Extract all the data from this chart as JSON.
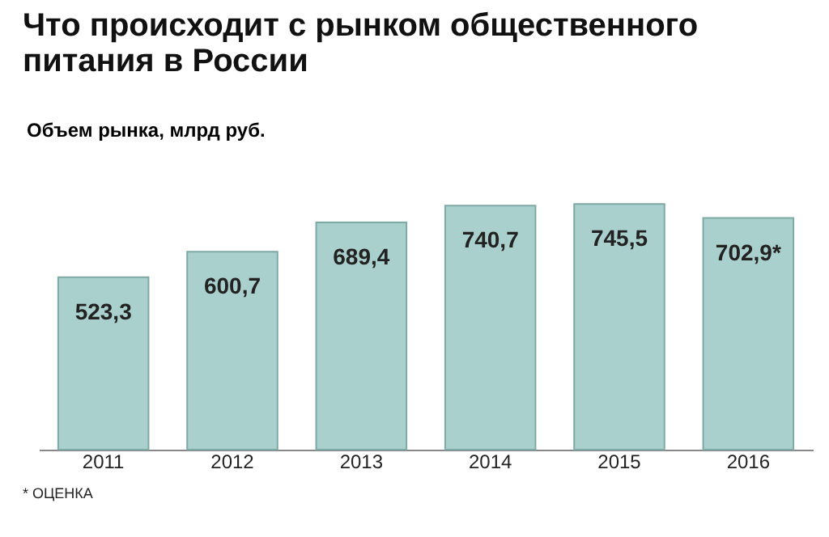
{
  "chart_data": {
    "type": "bar",
    "title": "Что происходит с рынком общественного питания в России",
    "ylabel": "Объем рынка, млрд руб.",
    "categories": [
      "2011",
      "2012",
      "2013",
      "2014",
      "2015",
      "2016"
    ],
    "values": [
      523.3,
      600.7,
      689.4,
      740.7,
      745.5,
      702.9
    ],
    "value_labels": [
      "523,3",
      "600,7",
      "689,4",
      "740,7",
      "745,5",
      "702,9*"
    ],
    "color": "#a9d0cc",
    "annotations": [
      "* ОЦЕНКА"
    ]
  }
}
